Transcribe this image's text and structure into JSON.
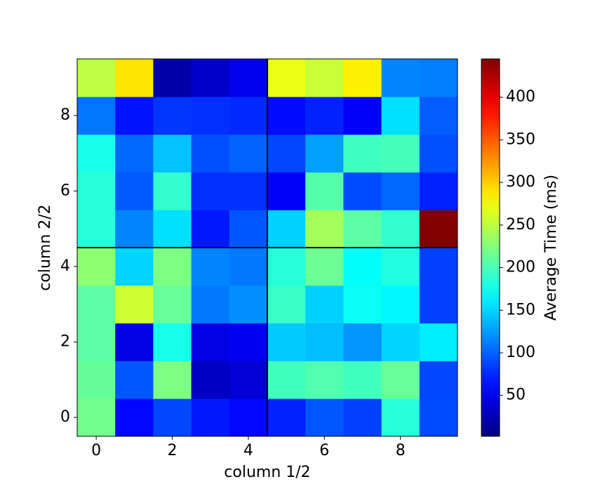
{
  "chart_data": {
    "type": "heatmap",
    "xlabel": "column 1/2",
    "ylabel": "column 2/2",
    "xlim": [
      -0.5,
      9.5
    ],
    "ylim": [
      -0.5,
      9.5
    ],
    "xticks": [
      0,
      2,
      4,
      6,
      8
    ],
    "yticks": [
      0,
      2,
      4,
      6,
      8
    ],
    "values": [
      [
        218,
        60,
        88,
        68,
        60,
        72,
        95,
        85,
        185,
        90
      ],
      [
        212,
        95,
        222,
        32,
        40,
        196,
        203,
        196,
        213,
        88
      ],
      [
        208,
        45,
        178,
        45,
        52,
        145,
        140,
        122,
        150,
        160
      ],
      [
        208,
        258,
        213,
        110,
        120,
        193,
        148,
        172,
        165,
        85
      ],
      [
        230,
        150,
        222,
        115,
        110,
        185,
        215,
        170,
        182,
        85
      ],
      [
        185,
        115,
        155,
        68,
        95,
        148,
        240,
        208,
        190,
        445
      ],
      [
        185,
        97,
        190,
        78,
        78,
        55,
        205,
        90,
        102,
        72
      ],
      [
        178,
        102,
        142,
        92,
        100,
        88,
        127,
        195,
        198,
        92
      ],
      [
        108,
        65,
        80,
        78,
        75,
        62,
        72,
        55,
        155,
        98
      ],
      [
        250,
        290,
        20,
        35,
        50,
        270,
        255,
        285,
        115,
        112
      ]
    ],
    "vlines": [
      4.5
    ],
    "hlines": [
      4.5
    ],
    "line_color": "#000000",
    "colorbar": {
      "label": "Average Time (ms)",
      "colormap": "jet",
      "lim": [
        2,
        445
      ],
      "ticks": [
        50,
        100,
        150,
        200,
        250,
        300,
        350,
        400
      ]
    }
  }
}
